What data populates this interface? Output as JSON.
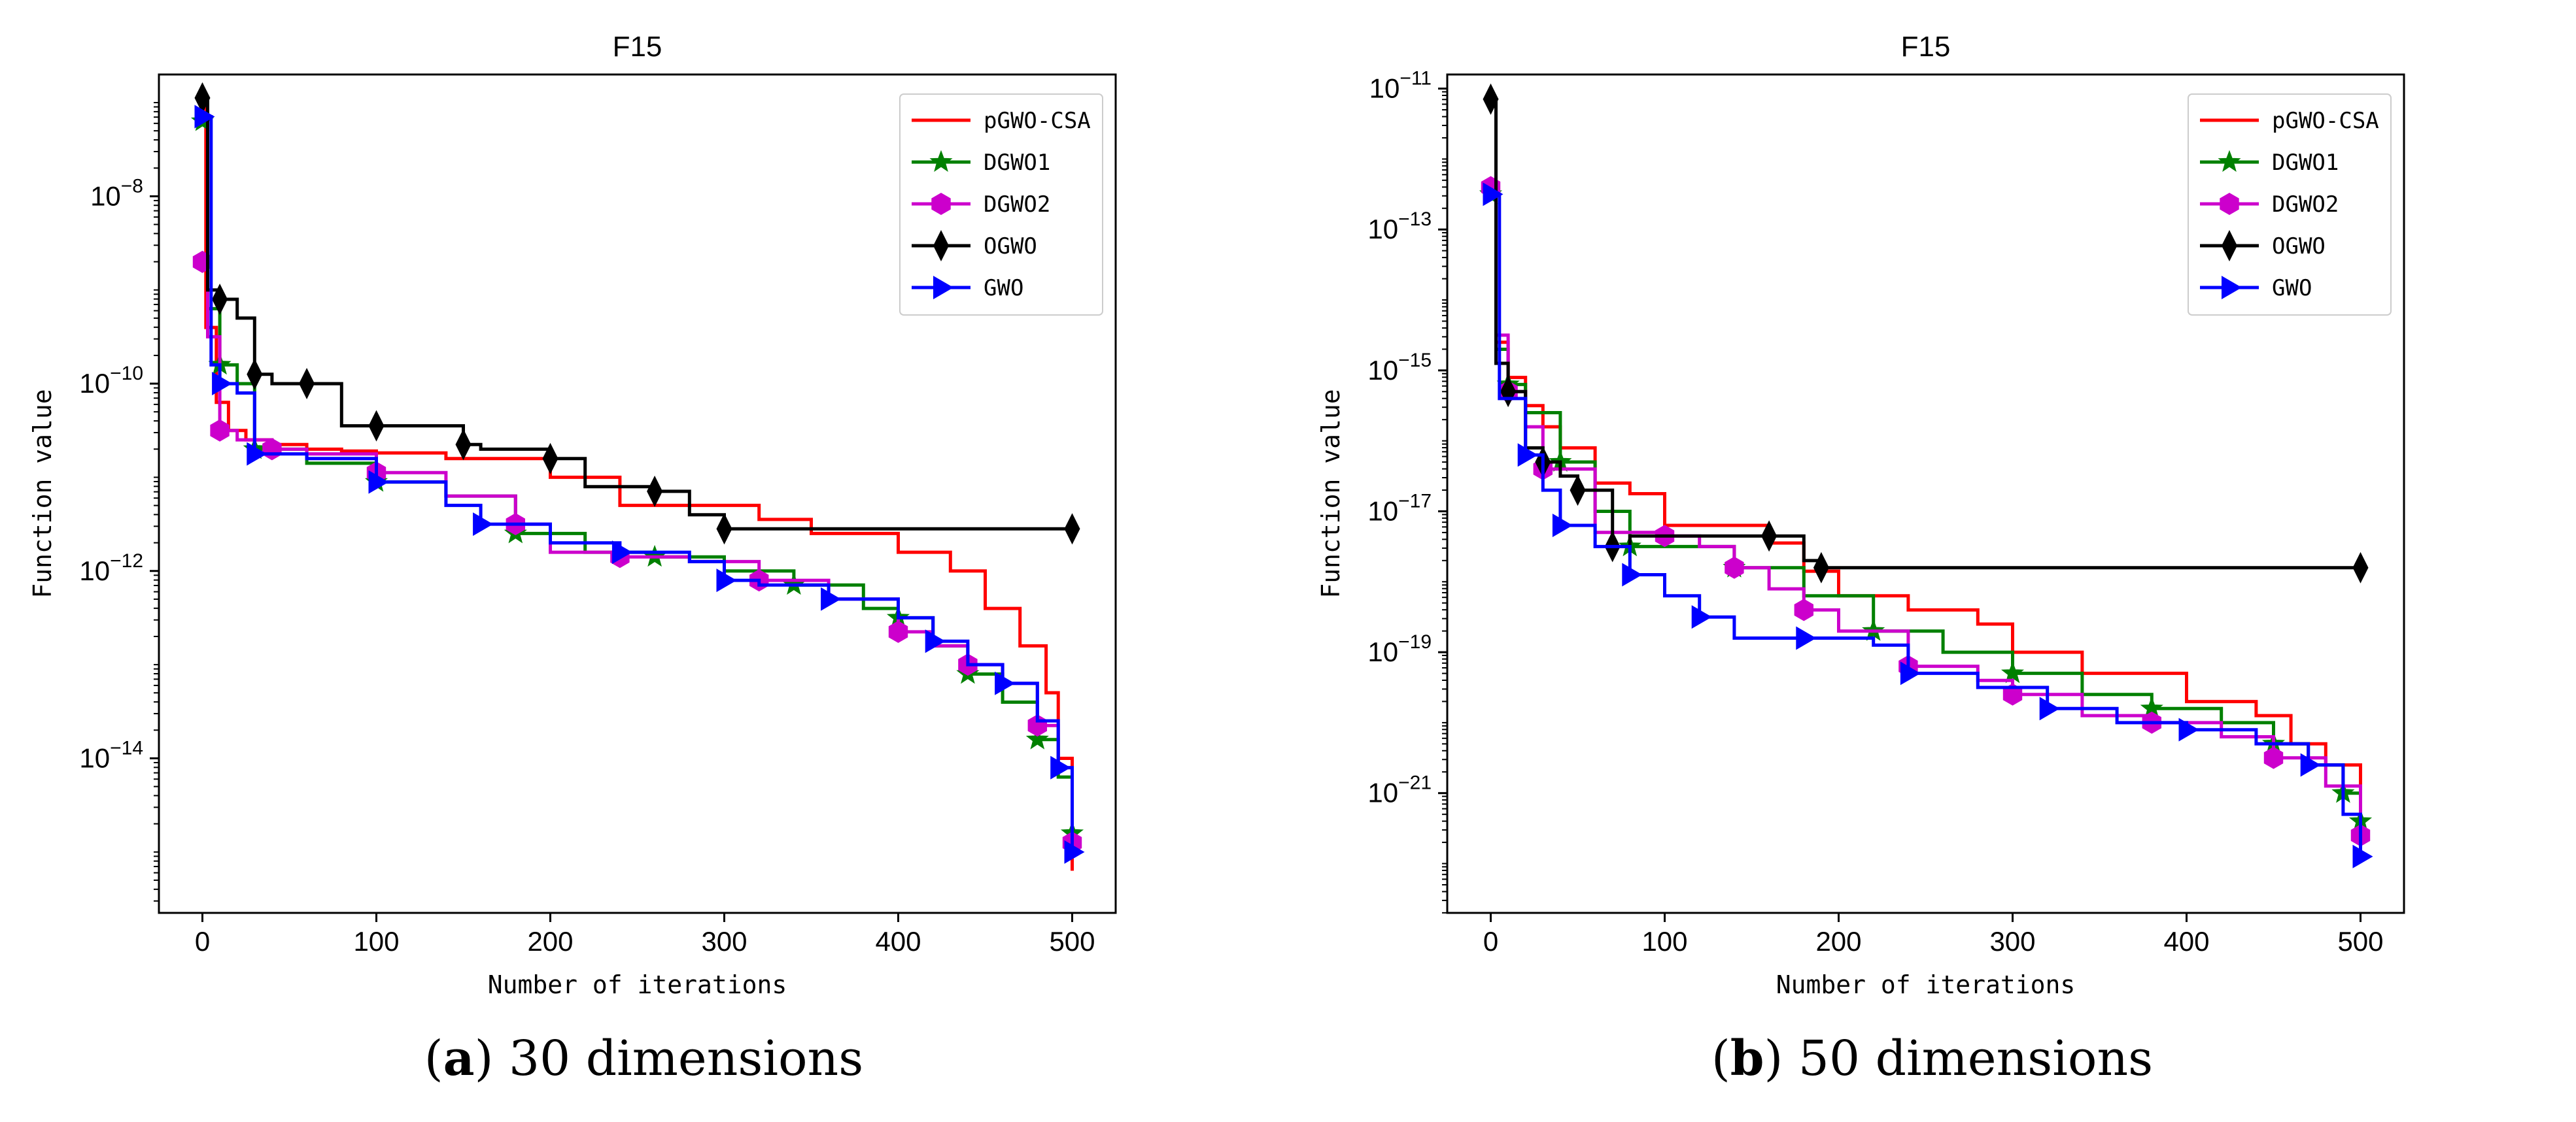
{
  "chart_data": [
    {
      "type": "line",
      "panel_letter": "a",
      "caption": " 30 dimensions",
      "title": "F15",
      "xlabel": "Number of iterations",
      "ylabel": "Function value",
      "yscale": "log",
      "xlim": [
        -25,
        525
      ],
      "ylim_exp": [
        -15.65,
        -6.7
      ],
      "xticks": [
        0,
        100,
        200,
        300,
        400,
        500
      ],
      "yticks_exp": [
        -14,
        -12,
        -10,
        -8
      ],
      "legend_position": "top-right",
      "series": [
        {
          "name": "pGWO-CSA",
          "color": "#ff0000",
          "marker": "none",
          "points": [
            [
              0,
              -7.0
            ],
            [
              2,
              -9.4
            ],
            [
              8,
              -10.2
            ],
            [
              15,
              -10.5
            ],
            [
              25,
              -10.6
            ],
            [
              40,
              -10.65
            ],
            [
              60,
              -10.7
            ],
            [
              80,
              -10.72
            ],
            [
              100,
              -10.74
            ],
            [
              140,
              -10.8
            ],
            [
              200,
              -11.0
            ],
            [
              240,
              -11.3
            ],
            [
              280,
              -11.3
            ],
            [
              320,
              -11.45
            ],
            [
              350,
              -11.6
            ],
            [
              400,
              -11.8
            ],
            [
              430,
              -12.0
            ],
            [
              450,
              -12.4
            ],
            [
              470,
              -12.8
            ],
            [
              485,
              -13.3
            ],
            [
              492,
              -14.0
            ],
            [
              500,
              -15.2
            ]
          ]
        },
        {
          "name": "DGWO1",
          "color": "#008000",
          "marker": "star",
          "points": [
            [
              0,
              -7.2
            ],
            [
              3,
              -9.2
            ],
            [
              10,
              -9.8
            ],
            [
              20,
              -10.0
            ],
            [
              30,
              -10.7
            ],
            [
              60,
              -10.85
            ],
            [
              100,
              -11.05
            ],
            [
              140,
              -11.2
            ],
            [
              180,
              -11.6
            ],
            [
              220,
              -11.8
            ],
            [
              260,
              -11.85
            ],
            [
              300,
              -12.0
            ],
            [
              340,
              -12.15
            ],
            [
              380,
              -12.4
            ],
            [
              400,
              -12.5
            ],
            [
              420,
              -12.8
            ],
            [
              440,
              -13.1
            ],
            [
              460,
              -13.4
            ],
            [
              480,
              -13.8
            ],
            [
              492,
              -14.2
            ],
            [
              500,
              -14.8
            ]
          ]
        },
        {
          "name": "DGWO2",
          "color": "#cc00cc",
          "marker": "hexagon",
          "points": [
            [
              0,
              -8.7
            ],
            [
              3,
              -9.5
            ],
            [
              10,
              -10.5
            ],
            [
              20,
              -10.6
            ],
            [
              40,
              -10.7
            ],
            [
              60,
              -10.75
            ],
            [
              100,
              -10.95
            ],
            [
              140,
              -11.2
            ],
            [
              180,
              -11.5
            ],
            [
              200,
              -11.8
            ],
            [
              240,
              -11.85
            ],
            [
              280,
              -11.9
            ],
            [
              320,
              -12.1
            ],
            [
              360,
              -12.3
            ],
            [
              400,
              -12.65
            ],
            [
              420,
              -12.8
            ],
            [
              440,
              -13.0
            ],
            [
              460,
              -13.2
            ],
            [
              480,
              -13.65
            ],
            [
              492,
              -14.1
            ],
            [
              500,
              -14.9
            ]
          ]
        },
        {
          "name": "OGWO",
          "color": "#000000",
          "marker": "diamond",
          "points": [
            [
              0,
              -6.95
            ],
            [
              3,
              -9.0
            ],
            [
              10,
              -9.1
            ],
            [
              20,
              -9.3
            ],
            [
              30,
              -9.9
            ],
            [
              40,
              -10.0
            ],
            [
              60,
              -10.0
            ],
            [
              80,
              -10.45
            ],
            [
              100,
              -10.45
            ],
            [
              140,
              -10.45
            ],
            [
              150,
              -10.65
            ],
            [
              160,
              -10.7
            ],
            [
              200,
              -10.8
            ],
            [
              220,
              -11.1
            ],
            [
              260,
              -11.15
            ],
            [
              280,
              -11.4
            ],
            [
              300,
              -11.55
            ],
            [
              400,
              -11.55
            ],
            [
              500,
              -11.55
            ]
          ]
        },
        {
          "name": "GWO",
          "color": "#0000ff",
          "marker": "triangle-right",
          "points": [
            [
              0,
              -7.15
            ],
            [
              5,
              -9.8
            ],
            [
              10,
              -10.0
            ],
            [
              20,
              -10.1
            ],
            [
              30,
              -10.75
            ],
            [
              60,
              -10.8
            ],
            [
              100,
              -11.05
            ],
            [
              140,
              -11.3
            ],
            [
              160,
              -11.5
            ],
            [
              200,
              -11.7
            ],
            [
              240,
              -11.8
            ],
            [
              280,
              -11.9
            ],
            [
              300,
              -12.1
            ],
            [
              320,
              -12.15
            ],
            [
              360,
              -12.3
            ],
            [
              400,
              -12.5
            ],
            [
              420,
              -12.75
            ],
            [
              440,
              -13.0
            ],
            [
              460,
              -13.2
            ],
            [
              480,
              -13.6
            ],
            [
              492,
              -14.1
            ],
            [
              500,
              -15.0
            ]
          ]
        }
      ]
    },
    {
      "type": "line",
      "panel_letter": "b",
      "caption": " 50 dimensions",
      "title": "F15",
      "xlabel": "Number of iterations",
      "ylabel": "Function value",
      "yscale": "log",
      "xlim": [
        -25,
        525
      ],
      "ylim_exp": [
        -22.7,
        -10.8
      ],
      "xticks": [
        0,
        100,
        200,
        300,
        400,
        500
      ],
      "yticks_exp": [
        -21,
        -19,
        -17,
        -15,
        -13,
        -11
      ],
      "legend_position": "top-right",
      "series": [
        {
          "name": "pGWO-CSA",
          "color": "#ff0000",
          "marker": "none",
          "points": [
            [
              0,
              -11.2
            ],
            [
              3,
              -14.6
            ],
            [
              10,
              -15.1
            ],
            [
              20,
              -15.5
            ],
            [
              30,
              -15.8
            ],
            [
              40,
              -16.1
            ],
            [
              60,
              -16.6
            ],
            [
              80,
              -16.75
            ],
            [
              100,
              -17.2
            ],
            [
              120,
              -17.2
            ],
            [
              160,
              -17.45
            ],
            [
              180,
              -17.85
            ],
            [
              200,
              -18.2
            ],
            [
              240,
              -18.4
            ],
            [
              280,
              -18.6
            ],
            [
              300,
              -19.0
            ],
            [
              340,
              -19.3
            ],
            [
              400,
              -19.7
            ],
            [
              440,
              -19.9
            ],
            [
              460,
              -20.3
            ],
            [
              480,
              -20.6
            ],
            [
              500,
              -21.2
            ]
          ]
        },
        {
          "name": "DGWO1",
          "color": "#008000",
          "marker": "star",
          "points": [
            [
              0,
              -12.5
            ],
            [
              3,
              -14.7
            ],
            [
              10,
              -15.2
            ],
            [
              20,
              -15.6
            ],
            [
              40,
              -16.3
            ],
            [
              60,
              -17.0
            ],
            [
              80,
              -17.5
            ],
            [
              100,
              -17.5
            ],
            [
              140,
              -17.8
            ],
            [
              180,
              -18.2
            ],
            [
              220,
              -18.7
            ],
            [
              260,
              -19.0
            ],
            [
              300,
              -19.3
            ],
            [
              340,
              -19.6
            ],
            [
              380,
              -19.8
            ],
            [
              420,
              -20.0
            ],
            [
              450,
              -20.3
            ],
            [
              470,
              -20.6
            ],
            [
              490,
              -21.0
            ],
            [
              500,
              -21.4
            ]
          ]
        },
        {
          "name": "DGWO2",
          "color": "#cc00cc",
          "marker": "hexagon",
          "points": [
            [
              0,
              -12.4
            ],
            [
              3,
              -14.5
            ],
            [
              10,
              -15.3
            ],
            [
              20,
              -15.8
            ],
            [
              30,
              -16.4
            ],
            [
              60,
              -17.3
            ],
            [
              100,
              -17.35
            ],
            [
              120,
              -17.5
            ],
            [
              140,
              -17.8
            ],
            [
              160,
              -18.1
            ],
            [
              180,
              -18.4
            ],
            [
              200,
              -18.7
            ],
            [
              240,
              -19.2
            ],
            [
              280,
              -19.4
            ],
            [
              300,
              -19.6
            ],
            [
              340,
              -19.9
            ],
            [
              380,
              -20.0
            ],
            [
              420,
              -20.2
            ],
            [
              450,
              -20.5
            ],
            [
              480,
              -20.9
            ],
            [
              500,
              -21.6
            ]
          ]
        },
        {
          "name": "OGWO",
          "color": "#000000",
          "marker": "diamond",
          "points": [
            [
              0,
              -11.15
            ],
            [
              3,
              -14.9
            ],
            [
              10,
              -15.3
            ],
            [
              20,
              -16.1
            ],
            [
              30,
              -16.3
            ],
            [
              40,
              -16.5
            ],
            [
              50,
              -16.7
            ],
            [
              60,
              -16.7
            ],
            [
              70,
              -17.5
            ],
            [
              80,
              -17.35
            ],
            [
              160,
              -17.35
            ],
            [
              180,
              -17.7
            ],
            [
              190,
              -17.8
            ],
            [
              500,
              -17.8
            ]
          ]
        },
        {
          "name": "GWO",
          "color": "#0000ff",
          "marker": "triangle-right",
          "points": [
            [
              0,
              -12.5
            ],
            [
              5,
              -15.4
            ],
            [
              20,
              -16.2
            ],
            [
              30,
              -16.7
            ],
            [
              40,
              -17.2
            ],
            [
              60,
              -17.5
            ],
            [
              80,
              -17.9
            ],
            [
              100,
              -18.2
            ],
            [
              120,
              -18.5
            ],
            [
              140,
              -18.8
            ],
            [
              180,
              -18.8
            ],
            [
              220,
              -18.9
            ],
            [
              240,
              -19.3
            ],
            [
              280,
              -19.5
            ],
            [
              320,
              -19.8
            ],
            [
              360,
              -20.0
            ],
            [
              400,
              -20.1
            ],
            [
              440,
              -20.3
            ],
            [
              470,
              -20.6
            ],
            [
              490,
              -21.3
            ],
            [
              500,
              -21.9
            ]
          ]
        }
      ]
    }
  ]
}
